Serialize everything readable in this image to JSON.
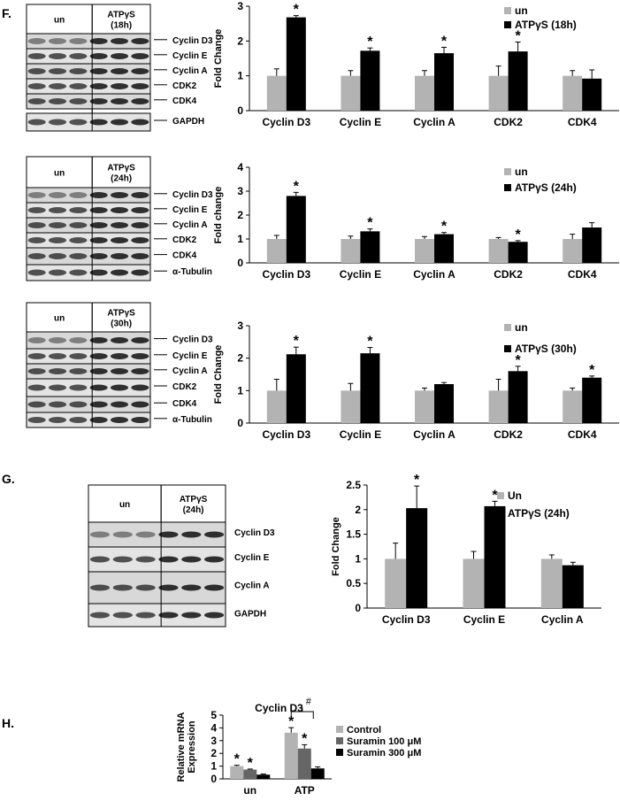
{
  "panel_labels": [
    "F.",
    "G.",
    "H."
  ],
  "blots": [
    {
      "control": "un",
      "treatment": "ATPγS",
      "time": "(18h)",
      "bands": [
        "Cyclin D3",
        "Cyclin E",
        "Cyclin A",
        "CDK2",
        "CDK4",
        "GAPDH"
      ]
    },
    {
      "control": "un",
      "treatment": "ATPγS",
      "time": "(24h)",
      "bands": [
        "Cyclin D3",
        "Cyclin E",
        "Cyclin A",
        "CDK2",
        "CDK4",
        "α-Tubulin"
      ]
    },
    {
      "control": "un",
      "treatment": "ATPγS",
      "time": "(30h)",
      "bands": [
        "Cyclin D3",
        "Cyclin E",
        "Cyclin A",
        "CDK2",
        "CDK4",
        "α-Tubulin"
      ]
    },
    {
      "control": "un",
      "treatment": "ATPγS",
      "time": "(24h)",
      "bands": [
        "Cyclin D3",
        "Cyclin E",
        "Cyclin A",
        "GAPDH"
      ]
    }
  ],
  "chart_data": [
    {
      "type": "bar",
      "y_label": "Fold Change",
      "ylim": [
        0,
        3
      ],
      "yticks": [
        0,
        1,
        2,
        3
      ],
      "categories": [
        "Cyclin D3",
        "Cyclin E",
        "Cyclin A",
        "CDK2",
        "CDK4"
      ],
      "series": [
        {
          "name": "un",
          "color": "#b3b3b3",
          "values": [
            1,
            1,
            1,
            1,
            1
          ],
          "errors": [
            0.2,
            0.15,
            0.15,
            0.28,
            0.15
          ]
        },
        {
          "name": "ATPγS (18h)",
          "color": "#000000",
          "values": [
            2.68,
            1.72,
            1.65,
            1.7,
            0.92
          ],
          "errors": [
            0.05,
            0.08,
            0.17,
            0.27,
            0.25
          ],
          "annotations": [
            "*",
            "*",
            "*",
            "*",
            null
          ]
        }
      ]
    },
    {
      "type": "bar",
      "y_label": "Fold change",
      "ylim": [
        0,
        4
      ],
      "yticks": [
        0,
        1,
        2,
        3,
        4
      ],
      "categories": [
        "Cyclin D3",
        "Cyclin E",
        "Cyclin A",
        "CDK2",
        "CDK4"
      ],
      "series": [
        {
          "name": "un",
          "color": "#b3b3b3",
          "values": [
            1,
            1,
            1,
            1,
            1
          ],
          "errors": [
            0.15,
            0.12,
            0.1,
            0.06,
            0.2
          ]
        },
        {
          "name": "ATPγS (24h)",
          "color": "#000000",
          "values": [
            2.8,
            1.32,
            1.2,
            0.88,
            1.48
          ],
          "errors": [
            0.15,
            0.1,
            0.07,
            0.05,
            0.2
          ],
          "annotations": [
            "*",
            "*",
            "*",
            "*",
            null
          ]
        }
      ]
    },
    {
      "type": "bar",
      "y_label": "Fold Change",
      "ylim": [
        0,
        3
      ],
      "yticks": [
        0,
        1,
        2,
        3
      ],
      "categories": [
        "Cyclin D3",
        "Cyclin E",
        "Cyclin A",
        "CDK2",
        "CDK4"
      ],
      "series": [
        {
          "name": "un",
          "color": "#b3b3b3",
          "values": [
            1,
            1,
            1,
            1,
            1
          ],
          "errors": [
            0.35,
            0.22,
            0.08,
            0.35,
            0.08
          ]
        },
        {
          "name": "ATPγS (30h)",
          "color": "#000000",
          "values": [
            2.12,
            2.15,
            1.2,
            1.6,
            1.4
          ],
          "errors": [
            0.22,
            0.18,
            0.05,
            0.15,
            0.05
          ],
          "annotations": [
            "*",
            "*",
            null,
            "*",
            "*"
          ]
        }
      ]
    },
    {
      "type": "bar",
      "y_label": "Fold Change",
      "ylim": [
        0,
        2.5
      ],
      "yticks": [
        0,
        0.5,
        1,
        1.5,
        2,
        2.5
      ],
      "categories": [
        "Cyclin D3",
        "Cyclin E",
        "Cyclin A"
      ],
      "series": [
        {
          "name": "Un",
          "color": "#b3b3b3",
          "values": [
            1,
            1,
            1
          ],
          "errors": [
            0.32,
            0.15,
            0.08
          ]
        },
        {
          "name": "ATPγS (24h)",
          "color": "#000000",
          "values": [
            2.03,
            2.07,
            0.87
          ],
          "errors": [
            0.45,
            0.1,
            0.06
          ],
          "annotations": [
            "*",
            "*",
            null
          ]
        }
      ]
    },
    {
      "type": "bar",
      "title": "Cyclin D3",
      "y_label": [
        "Relative mRNA",
        "Expression"
      ],
      "ylim": [
        0,
        5
      ],
      "yticks": [
        0,
        1,
        2,
        3,
        4,
        5
      ],
      "categories": [
        "un",
        "ATP"
      ],
      "bracket_label": "#",
      "series": [
        {
          "name": "Control",
          "color": "#b3b3b3",
          "values": [
            1.0,
            3.62
          ],
          "errors": [
            0.07,
            0.4
          ],
          "annotations": [
            "*",
            "*"
          ]
        },
        {
          "name": "Suramin  100 μM",
          "color": "#666666",
          "values": [
            0.73,
            2.38
          ],
          "errors": [
            0.04,
            0.3
          ],
          "annotations": [
            "*",
            "*"
          ]
        },
        {
          "name": "Suramin  300 μM",
          "color": "#000000",
          "values": [
            0.33,
            0.82
          ],
          "errors": [
            0.05,
            0.12
          ]
        }
      ]
    }
  ]
}
